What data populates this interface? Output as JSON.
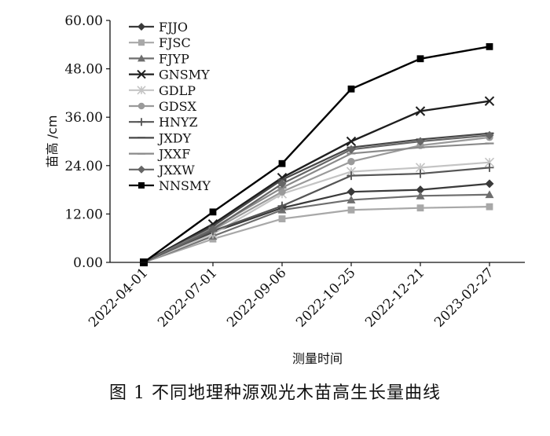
{
  "caption": "图 1   不同地理种源观光木苗高生长量曲线",
  "chart_data": {
    "type": "line",
    "xlabel": "测量时间",
    "ylabel": "苗高 /cm",
    "ylim": [
      0,
      60
    ],
    "yticks": [
      "0.00",
      "12.00",
      "24.00",
      "36.00",
      "48.00",
      "60.00"
    ],
    "categories": [
      "2022-04-01",
      "2022-07-01",
      "2022-09-06",
      "2022-10-25",
      "2022-12-21",
      "2023-02-27"
    ],
    "legend_position": "top-left",
    "grid": false,
    "series": [
      {
        "name": "FJJO",
        "color": "#3a3a3a",
        "marker": "diamond",
        "values": [
          0,
          7.5,
          13.5,
          17.5,
          18.0,
          19.5
        ]
      },
      {
        "name": "FJSC",
        "color": "#a8a8a8",
        "marker": "square",
        "values": [
          0,
          5.8,
          10.8,
          13.0,
          13.5,
          13.8
        ]
      },
      {
        "name": "FJYP",
        "color": "#6e6e6e",
        "marker": "triangle",
        "values": [
          0,
          6.5,
          13.0,
          15.5,
          16.5,
          16.8
        ]
      },
      {
        "name": "GNSMY",
        "color": "#1e1e1e",
        "marker": "x",
        "values": [
          0,
          9.5,
          21.0,
          30.0,
          37.5,
          40.0
        ]
      },
      {
        "name": "GDLP",
        "color": "#c4c4c4",
        "marker": "asterisk",
        "values": [
          0,
          7.0,
          17.0,
          22.5,
          23.5,
          24.8
        ]
      },
      {
        "name": "GDSX",
        "color": "#9a9a9a",
        "marker": "circle",
        "values": [
          0,
          8.0,
          17.5,
          25.0,
          29.0,
          31.0
        ]
      },
      {
        "name": "HNYZ",
        "color": "#555555",
        "marker": "plus",
        "values": [
          0,
          7.8,
          14.0,
          21.5,
          22.0,
          23.5
        ]
      },
      {
        "name": "JXDY",
        "color": "#474747",
        "marker": "dash",
        "values": [
          0,
          9.0,
          20.5,
          28.5,
          30.5,
          32.0
        ]
      },
      {
        "name": "JXXF",
        "color": "#8a8a8a",
        "marker": "dash",
        "values": [
          0,
          8.5,
          18.5,
          27.0,
          28.5,
          29.5
        ]
      },
      {
        "name": "JXXW",
        "color": "#666666",
        "marker": "diamond",
        "values": [
          0,
          8.2,
          19.5,
          28.0,
          30.0,
          31.5
        ]
      },
      {
        "name": "NNSMY",
        "color": "#000000",
        "marker": "square",
        "values": [
          0,
          12.5,
          24.5,
          43.0,
          50.5,
          53.5
        ]
      }
    ]
  }
}
